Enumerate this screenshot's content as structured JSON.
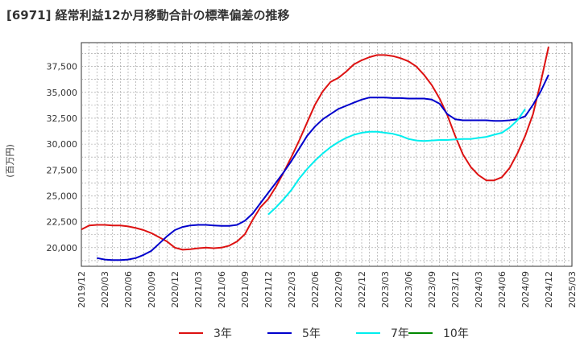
{
  "chart_data": {
    "type": "line",
    "title": "[6971]  経常利益12か月移動合計の標準偏差の推移",
    "ylabel": "(百万円)",
    "xlabel": "",
    "ylim": [
      18200,
      39800
    ],
    "yticks": [
      20000,
      22500,
      25000,
      27500,
      30000,
      32500,
      35000,
      37500
    ],
    "ytick_labels": [
      "20,000",
      "22,500",
      "25,000",
      "27,500",
      "30,000",
      "32,500",
      "35,000",
      "37,500"
    ],
    "xticks": [
      "2019/12",
      "2020/03",
      "2020/06",
      "2020/09",
      "2020/12",
      "2021/03",
      "2021/06",
      "2021/09",
      "2021/12",
      "2022/03",
      "2022/06",
      "2022/09",
      "2022/12",
      "2023/03",
      "2023/06",
      "2023/09",
      "2023/12",
      "2024/03",
      "2024/06",
      "2024/09",
      "2024/12",
      "2025/03"
    ],
    "grid": true,
    "legend_position": "bottom",
    "series": [
      {
        "name": "3年",
        "color": "#dd1111",
        "start": "2019/12",
        "values": [
          21750,
          22150,
          22200,
          22200,
          22150,
          22150,
          22050,
          21900,
          21700,
          21400,
          21000,
          20600,
          20000,
          19800,
          19850,
          19950,
          20000,
          19950,
          20000,
          20200,
          20600,
          21300,
          22700,
          23900,
          24700,
          25900,
          27300,
          28800,
          30400,
          32100,
          33800,
          35100,
          36000,
          36400,
          37000,
          37700,
          38100,
          38400,
          38600,
          38600,
          38500,
          38300,
          38000,
          37500,
          36700,
          35700,
          34400,
          32800,
          30800,
          29000,
          27800,
          27000,
          26500,
          26500,
          26800,
          27700,
          29100,
          30800,
          32900,
          36000,
          39400
        ]
      },
      {
        "name": "5年",
        "color": "#0000cc",
        "start": "2020/02",
        "values": [
          19000,
          18850,
          18800,
          18800,
          18850,
          19000,
          19300,
          19700,
          20400,
          21100,
          21700,
          22000,
          22150,
          22200,
          22200,
          22150,
          22100,
          22100,
          22200,
          22600,
          23300,
          24300,
          25300,
          26300,
          27300,
          28400,
          29600,
          30800,
          31700,
          32400,
          32900,
          33400,
          33700,
          34000,
          34300,
          34500,
          34500,
          34500,
          34450,
          34450,
          34400,
          34400,
          34400,
          34300,
          33900,
          32900,
          32400,
          32300,
          32300,
          32300,
          32300,
          32250,
          32250,
          32300,
          32400,
          32700,
          33800,
          35100,
          36700
        ]
      },
      {
        "name": "7年",
        "color": "#00eeee",
        "start": "2021/12",
        "values": [
          23200,
          23900,
          24700,
          25600,
          26700,
          27600,
          28400,
          29100,
          29700,
          30200,
          30600,
          30900,
          31100,
          31200,
          31200,
          31100,
          31000,
          30800,
          30500,
          30350,
          30300,
          30350,
          30400,
          30400,
          30450,
          30500,
          30500,
          30600,
          30700,
          30900,
          31100,
          31600,
          32300,
          33400
        ]
      },
      {
        "name": "10年",
        "color": "#008800",
        "start": "2019/12",
        "values": []
      }
    ]
  }
}
